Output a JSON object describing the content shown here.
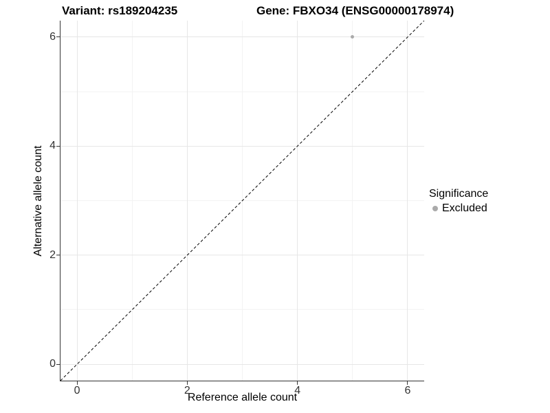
{
  "chart_data": {
    "type": "scatter",
    "titles": {
      "left": "Variant: rs189204235",
      "right": "Gene: FBXO34 (ENSG00000178974)"
    },
    "xlabel": "Reference allele count",
    "ylabel": "Alternative allele count",
    "xlim": [
      -0.3,
      6.3
    ],
    "ylim": [
      -0.3,
      6.3
    ],
    "x_ticks": [
      0,
      2,
      4,
      6
    ],
    "y_ticks": [
      0,
      2,
      4,
      6
    ],
    "x_minor_ticks": [
      1,
      3,
      5
    ],
    "y_minor_ticks": [
      1,
      3,
      5
    ],
    "grid": "major+minor",
    "points": [
      {
        "x": 5,
        "y": 6,
        "series": "Excluded"
      }
    ],
    "reference_line": {
      "kind": "identity",
      "style": "dashed",
      "color": "#000000",
      "from": [
        -0.3,
        -0.3
      ],
      "to": [
        6.3,
        6.3
      ]
    },
    "legend": {
      "title": "Significance",
      "position": "right",
      "entries": [
        {
          "label": "Excluded",
          "color": "#aaaaaa"
        }
      ]
    },
    "colors": {
      "background": "#ffffff",
      "grid_major": "#e6e6e6",
      "grid_minor": "#f3f3f3",
      "axis_line": "#333333",
      "tick_text": "#333333",
      "point": "#aaaaaa"
    }
  }
}
